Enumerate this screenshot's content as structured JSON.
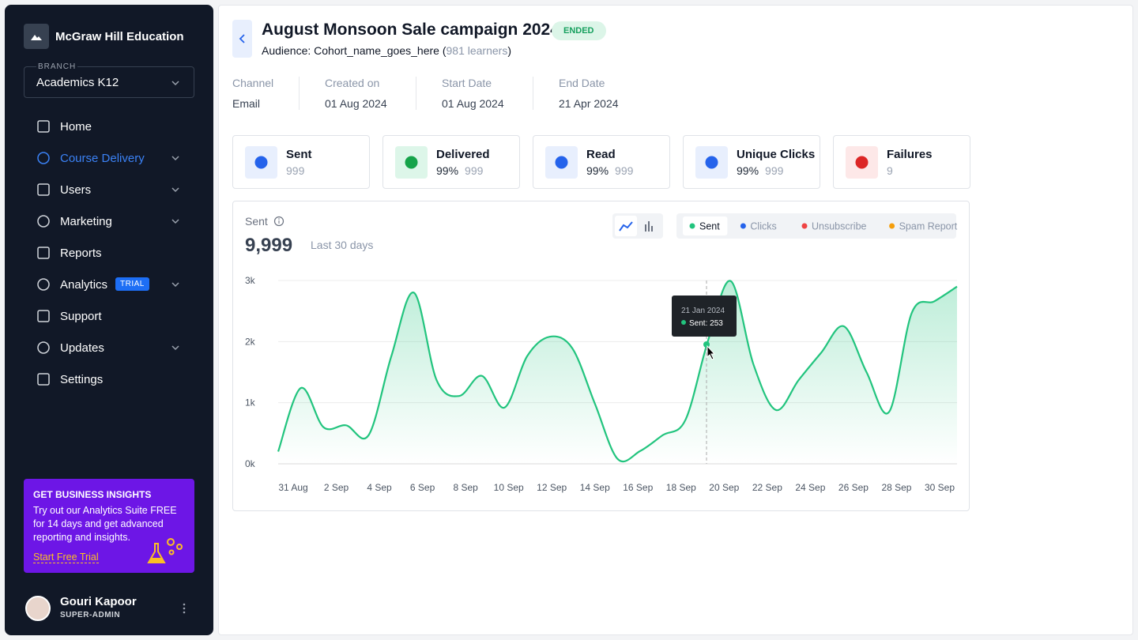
{
  "sidebar": {
    "org": "McGraw Hill Education",
    "branch_label": "BRANCH",
    "branch": "Academics K12",
    "nav": [
      {
        "label": "Home"
      },
      {
        "label": "Course Delivery"
      },
      {
        "label": "Users"
      },
      {
        "label": "Marketing"
      },
      {
        "label": "Reports"
      },
      {
        "label": "Analytics",
        "badge": "TRIAL"
      },
      {
        "label": "Support"
      },
      {
        "label": "Updates"
      },
      {
        "label": "Settings"
      }
    ],
    "promo": {
      "title": "GET BUSINESS INSIGHTS",
      "text": "Try out our Analytics Suite FREE for 14 days and get advanced reporting and insights.",
      "link": "Start Free Trial"
    },
    "user": {
      "name": "Gouri Kapoor",
      "role": "SUPER-ADMIN"
    }
  },
  "header": {
    "title": "August Monsoon Sale campaign 2024",
    "status": "ENDED",
    "audience": "Audience: Cohort_name_goes_here (",
    "learners": "981 learners",
    "audience_end": ")"
  },
  "meta": [
    {
      "label": "Channel",
      "value": "Email"
    },
    {
      "label": "Created on",
      "value": "01 Aug 2024"
    },
    {
      "label": "Start Date",
      "value": "01 Aug 2024"
    },
    {
      "label": "End Date",
      "value": "21 Apr 2024"
    }
  ],
  "stats": [
    {
      "label": "Sent",
      "value": "999"
    },
    {
      "label": "Delivered",
      "percent": "99%",
      "value": "999"
    },
    {
      "label": "Read",
      "percent": "99%",
      "value": "999"
    },
    {
      "label": "Unique Clicks",
      "percent": "99%",
      "value": "999"
    },
    {
      "label": "Failures",
      "value": "9"
    }
  ],
  "chart_data": {
    "type": "line",
    "title": "Sent",
    "total": "9,999",
    "period": "Last 30 days",
    "filters": [
      {
        "name": "Clicks",
        "color": "#2563eb"
      },
      {
        "name": "Unsubscribe",
        "color": "#ef4444"
      },
      {
        "name": "Spam Report",
        "color": "#f59e0b"
      }
    ],
    "categories": [
      "31 Aug",
      null,
      "2 Sep",
      null,
      "4 Sep",
      null,
      "6 Sep",
      null,
      "8 Sep",
      null,
      "10 Sep",
      null,
      "12 Sep",
      null,
      "14 Sep",
      null,
      "16 Sep",
      null,
      "18 Sep",
      null,
      "20 Sep",
      null,
      "22 Sep",
      null,
      "24 Sep",
      null,
      "26 Sep",
      null,
      "28 Sep",
      null,
      "30 Sep"
    ],
    "series": [
      {
        "name": "Sent",
        "color": "#22c47e",
        "values": [
          200,
          1240,
          600,
          630,
          470,
          1760,
          2800,
          1370,
          1110,
          1440,
          920,
          1760,
          2080,
          1890,
          980,
          80,
          210,
          470,
          720,
          2020,
          2990,
          1630,
          880,
          1370,
          1820,
          2250,
          1500,
          850,
          2470,
          2660,
          2900
        ]
      }
    ],
    "ylim": [
      0,
      3000
    ],
    "yticks": [
      {
        "value": 0,
        "label": "0k"
      },
      {
        "value": 1000,
        "label": "1k"
      },
      {
        "value": 2000,
        "label": "2k"
      },
      {
        "value": 3000,
        "label": "3k"
      }
    ],
    "grid": true,
    "tooltip": {
      "date": "21 Jan 2024",
      "text": "Sent: 253"
    }
  }
}
